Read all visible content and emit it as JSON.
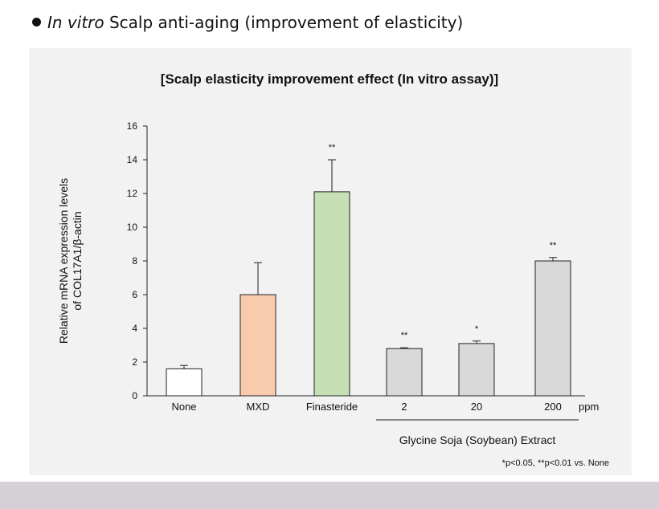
{
  "header": {
    "italic": "In vitro",
    "rest": " Scalp anti-aging (improvement of elasticity)"
  },
  "chart_data": {
    "type": "bar",
    "title": "[Scalp elasticity improvement effect (In vitro assay)]",
    "ylabel_line1": "Relative mRNA expression levels",
    "ylabel_line2": "of COL17A1/β-actin",
    "ylim": [
      0,
      16
    ],
    "yticks": [
      0,
      2,
      4,
      6,
      8,
      10,
      12,
      14,
      16
    ],
    "grid": false,
    "categories": [
      "None",
      "MXD",
      "Finasteride",
      "2",
      "20",
      "200"
    ],
    "values": [
      1.6,
      6.0,
      12.1,
      2.8,
      3.1,
      8.0
    ],
    "errors": [
      0.2,
      1.9,
      1.9,
      0.05,
      0.15,
      0.2
    ],
    "significance": [
      "",
      "",
      "**",
      "**",
      "*",
      "**"
    ],
    "bar_colors": [
      "#ffffff",
      "#f8cbad",
      "#c5e0b4",
      "#d9d9d9",
      "#d9d9d9",
      "#d9d9d9"
    ],
    "unit_label": "ppm",
    "group_label": "Glycine Soja (Soybean) Extract",
    "footnote": "*p<0.05, **p<0.01 vs. None"
  }
}
